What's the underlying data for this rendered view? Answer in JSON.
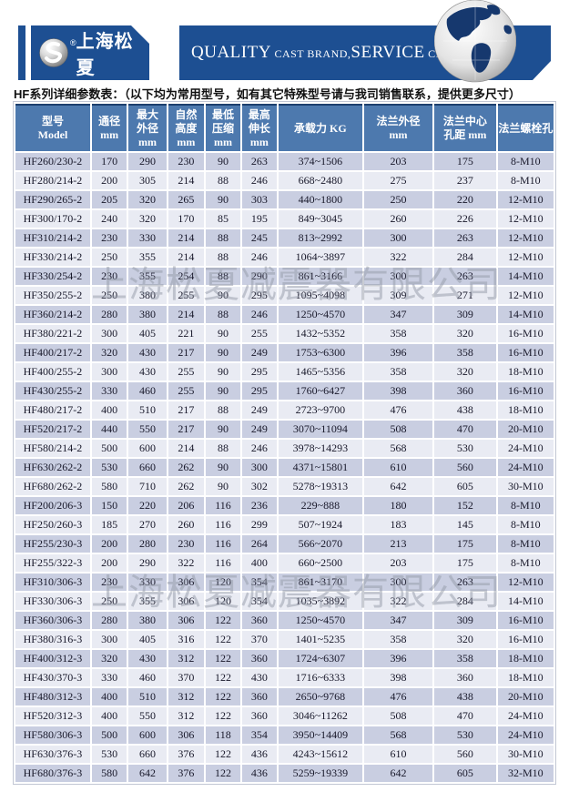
{
  "brand": {
    "logo_text": "上海松夏",
    "registered_mark": "®",
    "tagline": {
      "quality": "QUALITY",
      "cast_brand": " CAST BRAND,",
      "service": "SERVICE",
      "creat_value": " CREAT VALUE"
    }
  },
  "caption": "HF系列详细参数表：（以下均为常用型号，如有其它特殊型号请与我司销售联系，提供更多尺寸）",
  "watermark": "上海松夏减震器有限公司",
  "colors": {
    "banner_blue": "#1d4f92",
    "table_header_blue": "#4d79ae",
    "row_dark": "#c9cee1",
    "row_light": "#e9ebf3",
    "header_top_line": "#1c3f6e",
    "watermark_gray": "#9499a8"
  },
  "table": {
    "columns": [
      {
        "id": "model",
        "label": "型号\nModel",
        "width": 14.3
      },
      {
        "id": "diameter",
        "label": "通径\nmm",
        "width": 6.7
      },
      {
        "id": "max-od",
        "label": "最大\n外径\nmm",
        "width": 7.2
      },
      {
        "id": "natural-height",
        "label": "自然\n高度\nmm",
        "width": 6.9
      },
      {
        "id": "min-compression",
        "label": "最低\n压缩\nmm",
        "width": 6.6
      },
      {
        "id": "max-extension",
        "label": "最高\n伸长\nmm",
        "width": 6.6
      },
      {
        "id": "load-kg",
        "label": "承载力 KG",
        "width": 16.1
      },
      {
        "id": "flange-od",
        "label": "法兰外径\nmm",
        "width": 13.1
      },
      {
        "id": "flange-bcd",
        "label": "法兰中心\n孔距 mm",
        "width": 11.8
      },
      {
        "id": "flange-bolts",
        "label": "法兰螺栓孔",
        "width": 10.7
      }
    ],
    "rows": [
      [
        "HF260/230-2",
        "170",
        "290",
        "230",
        "90",
        "263",
        "374~1506",
        "203",
        "175",
        "8-M10"
      ],
      [
        "HF280/214-2",
        "200",
        "305",
        "214",
        "88",
        "246",
        "668~2480",
        "275",
        "237",
        "8-M10"
      ],
      [
        "HF290/265-2",
        "205",
        "320",
        "265",
        "90",
        "303",
        "440~1800",
        "250",
        "220",
        "12-M10"
      ],
      [
        "HF300/170-2",
        "240",
        "320",
        "170",
        "85",
        "195",
        "849~3045",
        "260",
        "226",
        "12-M10"
      ],
      [
        "HF310/214-2",
        "230",
        "330",
        "214",
        "88",
        "245",
        "813~2992",
        "300",
        "263",
        "12-M10"
      ],
      [
        "HF330/214-2",
        "250",
        "355",
        "214",
        "88",
        "246",
        "1064~3897",
        "322",
        "284",
        "12-M10"
      ],
      [
        "HF330/254-2",
        "230",
        "355",
        "254",
        "88",
        "290",
        "861~3166",
        "300",
        "263",
        "14-M10"
      ],
      [
        "HF350/255-2",
        "250",
        "380",
        "255",
        "90",
        "295",
        "1095~4098",
        "309",
        "271",
        "12-M10"
      ],
      [
        "HF360/214-2",
        "280",
        "380",
        "214",
        "88",
        "246",
        "1250~4570",
        "347",
        "309",
        "14-M10"
      ],
      [
        "HF380/221-2",
        "300",
        "405",
        "221",
        "90",
        "255",
        "1432~5352",
        "358",
        "320",
        "16-M10"
      ],
      [
        "HF400/217-2",
        "320",
        "430",
        "217",
        "90",
        "249",
        "1753~6300",
        "396",
        "358",
        "16-M10"
      ],
      [
        "HF400/255-2",
        "300",
        "430",
        "255",
        "90",
        "295",
        "1465~5356",
        "358",
        "320",
        "18-M10"
      ],
      [
        "HF430/255-2",
        "330",
        "460",
        "255",
        "90",
        "295",
        "1760~6427",
        "398",
        "360",
        "16-M10"
      ],
      [
        "HF480/217-2",
        "400",
        "510",
        "217",
        "88",
        "249",
        "2723~9700",
        "476",
        "438",
        "18-M10"
      ],
      [
        "HF520/217-2",
        "440",
        "550",
        "217",
        "90",
        "249",
        "3070~11094",
        "508",
        "470",
        "20-M10"
      ],
      [
        "HF580/214-2",
        "500",
        "600",
        "214",
        "88",
        "246",
        "3978~14293",
        "568",
        "530",
        "24-M10"
      ],
      [
        "HF630/262-2",
        "530",
        "660",
        "262",
        "90",
        "300",
        "4371~15801",
        "610",
        "560",
        "24-M10"
      ],
      [
        "HF680/262-2",
        "580",
        "710",
        "262",
        "90",
        "302",
        "5278~19313",
        "642",
        "605",
        "30-M10"
      ],
      [
        "HF200/206-3",
        "150",
        "220",
        "206",
        "116",
        "236",
        "229~888",
        "180",
        "152",
        "8-M10"
      ],
      [
        "HF250/260-3",
        "185",
        "270",
        "260",
        "116",
        "299",
        "507~1924",
        "183",
        "145",
        "8-M10"
      ],
      [
        "HF255/230-3",
        "200",
        "280",
        "230",
        "116",
        "264",
        "566~2070",
        "213",
        "175",
        "8-M10"
      ],
      [
        "HF255/322-3",
        "200",
        "290",
        "322",
        "116",
        "400",
        "660~2500",
        "203",
        "175",
        "8-M10"
      ],
      [
        "HF310/306-3",
        "230",
        "330",
        "306",
        "120",
        "354",
        "861~3170",
        "300",
        "263",
        "12-M10"
      ],
      [
        "HF330/306-3",
        "250",
        "355",
        "306",
        "120",
        "354",
        "1035~3892",
        "322",
        "284",
        "14-M10"
      ],
      [
        "HF360/306-3",
        "280",
        "380",
        "306",
        "122",
        "360",
        "1250~4570",
        "347",
        "309",
        "16-M10"
      ],
      [
        "HF380/316-3",
        "300",
        "405",
        "316",
        "122",
        "370",
        "1401~5235",
        "358",
        "320",
        "16-M10"
      ],
      [
        "HF400/312-3",
        "320",
        "430",
        "312",
        "122",
        "360",
        "1724~6307",
        "396",
        "358",
        "18-M10"
      ],
      [
        "HF430/370-3",
        "330",
        "460",
        "370",
        "122",
        "430",
        "1716~6333",
        "398",
        "360",
        "18-M10"
      ],
      [
        "HF480/312-3",
        "400",
        "510",
        "312",
        "122",
        "360",
        "2650~9768",
        "476",
        "438",
        "20-M10"
      ],
      [
        "HF520/312-3",
        "400",
        "550",
        "312",
        "122",
        "360",
        "3046~11262",
        "508",
        "470",
        "24-M10"
      ],
      [
        "HF580/306-3",
        "500",
        "600",
        "306",
        "118",
        "354",
        "3950~14409",
        "568",
        "530",
        "24-M10"
      ],
      [
        "HF630/376-3",
        "530",
        "660",
        "376",
        "122",
        "436",
        "4243~15612",
        "610",
        "560",
        "30-M10"
      ],
      [
        "HF680/376-3",
        "580",
        "642",
        "376",
        "122",
        "436",
        "5259~19339",
        "642",
        "605",
        "32-M10"
      ]
    ]
  }
}
